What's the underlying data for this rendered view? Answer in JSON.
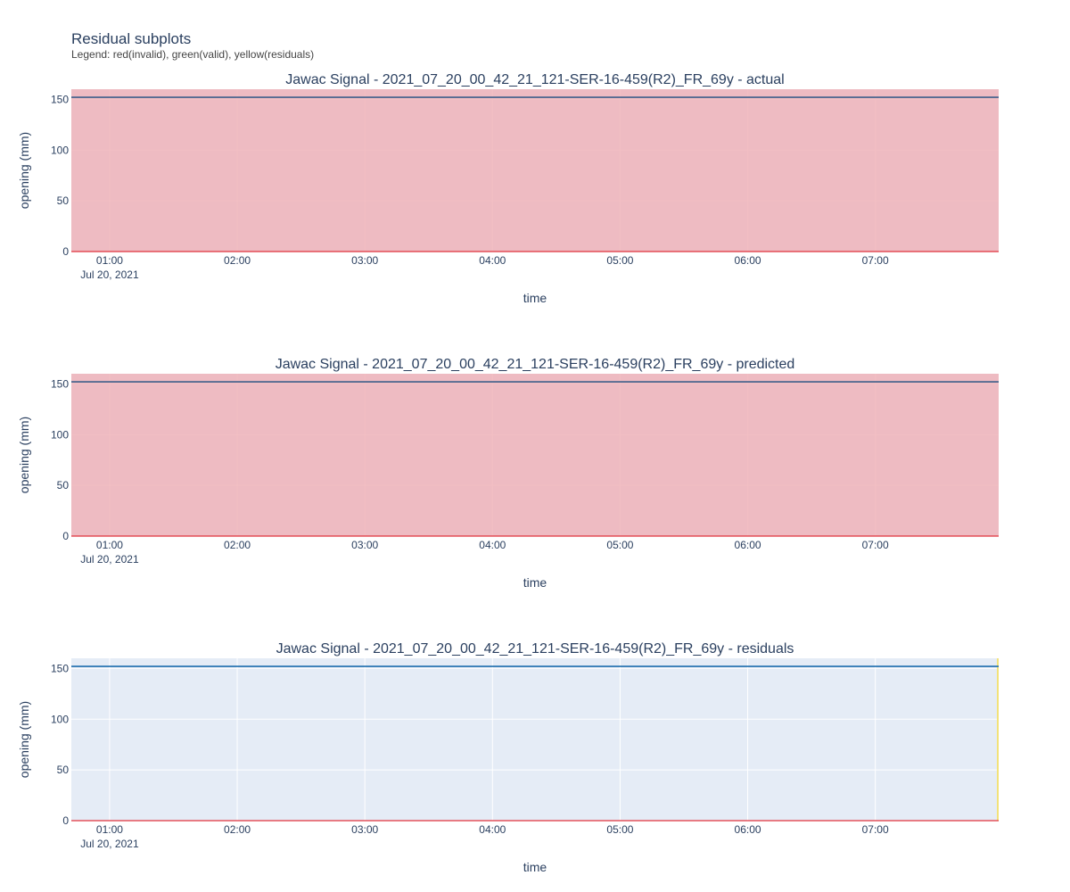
{
  "figure": {
    "title": "Residual subplots",
    "subtitle": "Legend: red(invalid), green(valid), yellow(residuals)"
  },
  "colors": {
    "plot_bg": "#e5ecf6",
    "invalid_fill": "#e8b7bf",
    "residual_edge": "#f2e27a",
    "grid": "#ffffff",
    "signal_line": "#3e5f8a",
    "residual_line": "#1f6fae",
    "zero_line": "#e0323c",
    "text": "#2a3f5f"
  },
  "chart_data": [
    {
      "type": "line",
      "title": "Jawac Signal - 2021_07_20_00_42_21_121-SER-16-459(R2)_FR_69y - actual",
      "xlabel": "time",
      "ylabel": "opening (mm)",
      "x_tick_labels": [
        "01:00",
        "02:00",
        "03:00",
        "04:00",
        "05:00",
        "06:00",
        "07:00"
      ],
      "x_date_label": "Jul 20, 2021",
      "y_ticks": [
        0,
        50,
        100,
        150
      ],
      "xlim": [
        "2021-07-20 00:42",
        "2021-07-20 07:58"
      ],
      "ylim": [
        0,
        160
      ],
      "grid": true,
      "shaded_regions": [
        {
          "kind": "invalid",
          "x0": "2021-07-20 00:42",
          "x1": "2021-07-20 07:58"
        }
      ],
      "series": [
        {
          "x": [
            "2021-07-20 00:42",
            "2021-07-20 07:58"
          ],
          "y": [
            152,
            152
          ]
        },
        {
          "x": [
            "2021-07-20 00:42",
            "2021-07-20 07:58"
          ],
          "y": [
            0,
            0
          ]
        }
      ]
    },
    {
      "type": "line",
      "title": "Jawac Signal - 2021_07_20_00_42_21_121-SER-16-459(R2)_FR_69y - predicted",
      "xlabel": "time",
      "ylabel": "opening (mm)",
      "x_tick_labels": [
        "01:00",
        "02:00",
        "03:00",
        "04:00",
        "05:00",
        "06:00",
        "07:00"
      ],
      "x_date_label": "Jul 20, 2021",
      "y_ticks": [
        0,
        50,
        100,
        150
      ],
      "xlim": [
        "2021-07-20 00:42",
        "2021-07-20 07:58"
      ],
      "ylim": [
        0,
        160
      ],
      "grid": true,
      "shaded_regions": [
        {
          "kind": "invalid",
          "x0": "2021-07-20 00:42",
          "x1": "2021-07-20 07:58"
        }
      ],
      "series": [
        {
          "x": [
            "2021-07-20 00:42",
            "2021-07-20 07:58"
          ],
          "y": [
            152,
            152
          ]
        },
        {
          "x": [
            "2021-07-20 00:42",
            "2021-07-20 07:58"
          ],
          "y": [
            0,
            0
          ]
        }
      ]
    },
    {
      "type": "line",
      "title": "Jawac Signal - 2021_07_20_00_42_21_121-SER-16-459(R2)_FR_69y - residuals",
      "xlabel": "time",
      "ylabel": "opening (mm)",
      "x_tick_labels": [
        "01:00",
        "02:00",
        "03:00",
        "04:00",
        "05:00",
        "06:00",
        "07:00"
      ],
      "x_date_label": "Jul 20, 2021",
      "y_ticks": [
        0,
        50,
        100,
        150
      ],
      "xlim": [
        "2021-07-20 00:42",
        "2021-07-20 07:58"
      ],
      "ylim": [
        0,
        160
      ],
      "grid": true,
      "shaded_regions": [],
      "series": [
        {
          "x": [
            "2021-07-20 00:42",
            "2021-07-20 07:58"
          ],
          "y": [
            152,
            152
          ]
        },
        {
          "x": [
            "2021-07-20 00:42",
            "2021-07-20 07:58"
          ],
          "y": [
            0,
            0
          ]
        }
      ]
    }
  ]
}
